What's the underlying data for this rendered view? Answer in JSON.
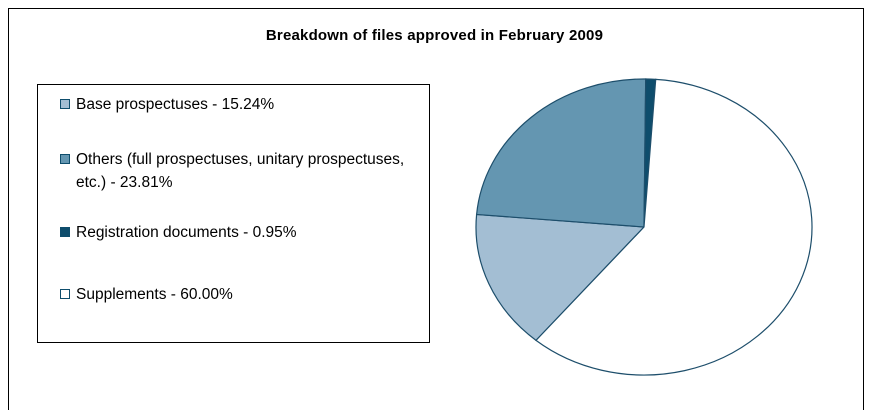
{
  "chart_data": {
    "type": "pie",
    "title": "Breakdown of files approved in February 2009",
    "categories": [
      "Base prospectuses - 15.24%",
      "Others (full prospectuses, unitary prospectuses, etc.) - 23.81%",
      "Registration documents - 0.95%",
      "Supplements - 60.00%"
    ],
    "values": [
      15.24,
      23.81,
      0.95,
      60.0
    ],
    "colors": [
      "#a3bed3",
      "#6496b1",
      "#0e4d6c",
      "#ffffff"
    ],
    "legend": "left"
  }
}
